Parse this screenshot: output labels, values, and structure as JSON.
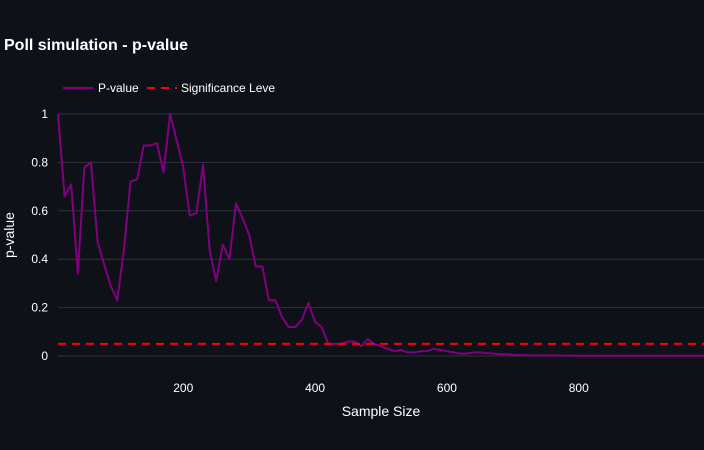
{
  "chart_data": {
    "type": "line",
    "title": "Poll simulation - p-value",
    "xlabel": "Sample Size",
    "ylabel": "p-value",
    "xlim": [
      10,
      990
    ],
    "ylim": [
      0,
      1
    ],
    "x_ticks": [
      200,
      400,
      600,
      800
    ],
    "y_ticks": [
      0,
      0.2,
      0.4,
      0.6,
      0.8,
      1
    ],
    "y_tick_labels": [
      "0",
      "0.2",
      "0.4",
      "0.6",
      "0.8",
      "1"
    ],
    "x_tick_labels": [
      "200",
      "400",
      "600",
      "800"
    ],
    "grid": true,
    "legend_position": "top-left",
    "series": [
      {
        "name": "P-value",
        "color": "#800080",
        "style": "solid",
        "x": [
          10,
          20,
          30,
          40,
          50,
          60,
          70,
          80,
          90,
          100,
          110,
          120,
          130,
          140,
          150,
          160,
          170,
          180,
          190,
          200,
          210,
          220,
          230,
          240,
          250,
          260,
          270,
          280,
          290,
          300,
          310,
          320,
          330,
          340,
          350,
          360,
          370,
          380,
          390,
          400,
          410,
          420,
          430,
          440,
          450,
          460,
          470,
          480,
          490,
          500,
          510,
          520,
          530,
          540,
          550,
          560,
          570,
          580,
          590,
          600,
          610,
          620,
          630,
          640,
          650,
          660,
          670,
          680,
          690,
          700,
          720,
          760,
          800,
          850,
          900,
          950,
          990
        ],
        "y": [
          1.0,
          0.66,
          0.71,
          0.34,
          0.78,
          0.8,
          0.47,
          0.38,
          0.29,
          0.23,
          0.44,
          0.72,
          0.73,
          0.87,
          0.87,
          0.88,
          0.76,
          1.0,
          0.89,
          0.78,
          0.58,
          0.59,
          0.79,
          0.44,
          0.31,
          0.46,
          0.4,
          0.63,
          0.57,
          0.5,
          0.37,
          0.37,
          0.23,
          0.23,
          0.16,
          0.12,
          0.12,
          0.15,
          0.22,
          0.14,
          0.12,
          0.05,
          0.05,
          0.05,
          0.06,
          0.06,
          0.04,
          0.07,
          0.05,
          0.04,
          0.03,
          0.02,
          0.025,
          0.015,
          0.015,
          0.02,
          0.02,
          0.03,
          0.025,
          0.02,
          0.015,
          0.01,
          0.01,
          0.015,
          0.015,
          0.012,
          0.01,
          0.008,
          0.007,
          0.005,
          0.003,
          0.002,
          0.001,
          0.001,
          0.001,
          0.001,
          0.001
        ]
      },
      {
        "name": "Significance Leve",
        "color": "#ff0000",
        "style": "dashed",
        "x": [
          10,
          990
        ],
        "y": [
          0.05,
          0.05
        ]
      }
    ]
  }
}
